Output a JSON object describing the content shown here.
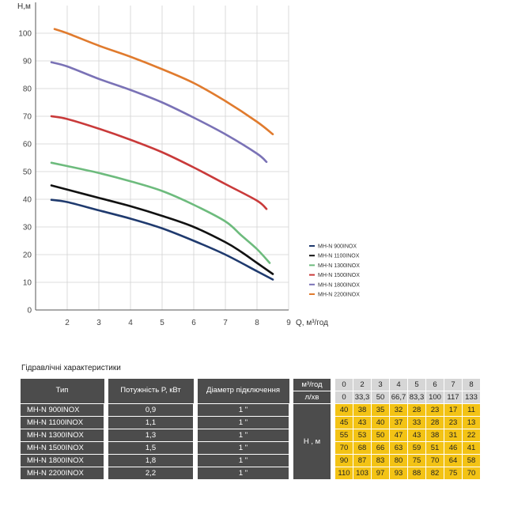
{
  "chart_data": {
    "type": "line",
    "ylabel": "H,м",
    "xlabel": "Q, м³/год",
    "ylim": [
      0,
      110
    ],
    "xlim": [
      1,
      9
    ],
    "yticks": [
      0,
      10,
      20,
      30,
      40,
      50,
      60,
      70,
      80,
      90,
      100
    ],
    "xticks": [
      2,
      3,
      4,
      5,
      6,
      7,
      8,
      9
    ],
    "grid": true,
    "legend_position": "right",
    "series": [
      {
        "name": "MH-N 900INOX",
        "color": "#1f3a6e",
        "points": [
          [
            1.5,
            39.8
          ],
          [
            2,
            39
          ],
          [
            3,
            36
          ],
          [
            4,
            33
          ],
          [
            5,
            29.5
          ],
          [
            6,
            25
          ],
          [
            7,
            20
          ],
          [
            8,
            14
          ],
          [
            8.5,
            11
          ]
        ]
      },
      {
        "name": "MH-N 1100INOX",
        "color": "#111111",
        "points": [
          [
            1.5,
            45
          ],
          [
            2,
            43.5
          ],
          [
            3,
            40.5
          ],
          [
            4,
            37.5
          ],
          [
            5,
            34
          ],
          [
            6,
            30
          ],
          [
            7,
            24.5
          ],
          [
            7.5,
            21
          ],
          [
            8,
            17
          ],
          [
            8.5,
            13
          ]
        ]
      },
      {
        "name": "MH-N 1300INOX",
        "color": "#6dbb7d",
        "points": [
          [
            1.5,
            53.2
          ],
          [
            2,
            52
          ],
          [
            3,
            49.5
          ],
          [
            4,
            46.5
          ],
          [
            5,
            43
          ],
          [
            6,
            38
          ],
          [
            7,
            32
          ],
          [
            7.5,
            27
          ],
          [
            8,
            22
          ],
          [
            8.4,
            17
          ]
        ]
      },
      {
        "name": "MH-N 1500INOX",
        "color": "#c93a3a",
        "points": [
          [
            1.5,
            70
          ],
          [
            2,
            69
          ],
          [
            3,
            65.5
          ],
          [
            4,
            61.5
          ],
          [
            5,
            57
          ],
          [
            6,
            51.5
          ],
          [
            7,
            45.5
          ],
          [
            8,
            39.5
          ],
          [
            8.3,
            36.5
          ]
        ]
      },
      {
        "name": "MH-N 1800INOX",
        "color": "#7a72b6",
        "points": [
          [
            1.5,
            89.5
          ],
          [
            2,
            88
          ],
          [
            3,
            83.5
          ],
          [
            4,
            79.5
          ],
          [
            5,
            75
          ],
          [
            6,
            69.5
          ],
          [
            7,
            63.5
          ],
          [
            8,
            56.5
          ],
          [
            8.3,
            53.5
          ]
        ]
      },
      {
        "name": "MH-N 2200INOX",
        "color": "#e07b2e",
        "points": [
          [
            1.6,
            101.5
          ],
          [
            2,
            100
          ],
          [
            3,
            95.5
          ],
          [
            4,
            91.5
          ],
          [
            5,
            87
          ],
          [
            6,
            82
          ],
          [
            7,
            75.5
          ],
          [
            8,
            68
          ],
          [
            8.5,
            63.5
          ]
        ]
      }
    ]
  },
  "table": {
    "title": "Гідравлічні характеристики",
    "headers": {
      "type": "Тип",
      "power": "Потужність  P, кВт",
      "diameter": "Діаметр підключення"
    },
    "flow_m3_label": "м³/год",
    "flow_lmin_label": "л/хв",
    "flow_m3": [
      "0",
      "2",
      "3",
      "4",
      "5",
      "6",
      "7",
      "8"
    ],
    "flow_lmin": [
      "0",
      "33,3",
      "50",
      "66,7",
      "83,3",
      "100",
      "117",
      "133"
    ],
    "head_label": "H , м",
    "rows": [
      {
        "type": "MH-N 900INOX",
        "power": "0,9",
        "diameter": "1 \"",
        "heads": [
          "40",
          "38",
          "35",
          "32",
          "28",
          "23",
          "17",
          "11"
        ]
      },
      {
        "type": "MH-N 1100INOX",
        "power": "1,1",
        "diameter": "1 \"",
        "heads": [
          "45",
          "43",
          "40",
          "37",
          "33",
          "28",
          "23",
          "13"
        ]
      },
      {
        "type": "MH-N 1300INOX",
        "power": "1,3",
        "diameter": "1 \"",
        "heads": [
          "55",
          "53",
          "50",
          "47",
          "43",
          "38",
          "31",
          "22"
        ]
      },
      {
        "type": "MH-N 1500INOX",
        "power": "1,5",
        "diameter": "1 \"",
        "heads": [
          "70",
          "68",
          "66",
          "63",
          "59",
          "51",
          "46",
          "41"
        ]
      },
      {
        "type": "MH-N 1800INOX",
        "power": "1,8",
        "diameter": "1 \"",
        "heads": [
          "90",
          "87",
          "83",
          "80",
          "75",
          "70",
          "64",
          "58"
        ]
      },
      {
        "type": "MH-N 2200INOX",
        "power": "2,2",
        "diameter": "1 \"",
        "heads": [
          "110",
          "103",
          "97",
          "93",
          "88",
          "82",
          "75",
          "70"
        ]
      }
    ]
  }
}
